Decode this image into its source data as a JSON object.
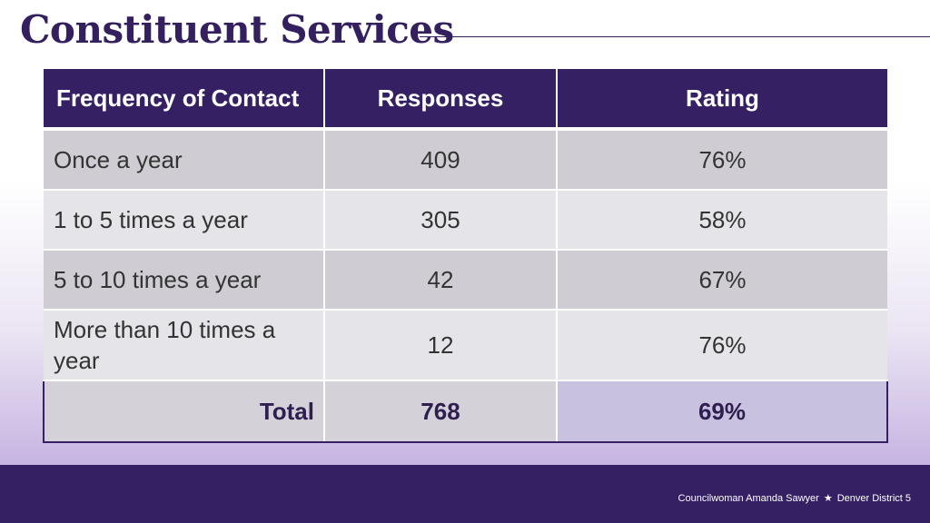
{
  "title": "Constituent Services",
  "table": {
    "headers": [
      "Frequency of Contact",
      "Responses",
      "Rating"
    ],
    "rows": [
      {
        "frequency": "Once a year",
        "responses": "409",
        "rating": "76%"
      },
      {
        "frequency": "1 to 5 times a year",
        "responses": "305",
        "rating": "58%"
      },
      {
        "frequency": "5 to 10 times a year",
        "responses": "42",
        "rating": "67%"
      },
      {
        "frequency": "More than 10 times a year",
        "responses": "12",
        "rating": "76%"
      }
    ],
    "total": {
      "label": "Total",
      "responses": "768",
      "rating": "69%"
    }
  },
  "footer": {
    "name": "Councilwoman Amanda Sawyer",
    "separator_icon": "star-icon",
    "district": "Denver District 5"
  },
  "colors": {
    "brand_purple": "#352064",
    "total_rating_highlight": "#c9c1e0"
  }
}
